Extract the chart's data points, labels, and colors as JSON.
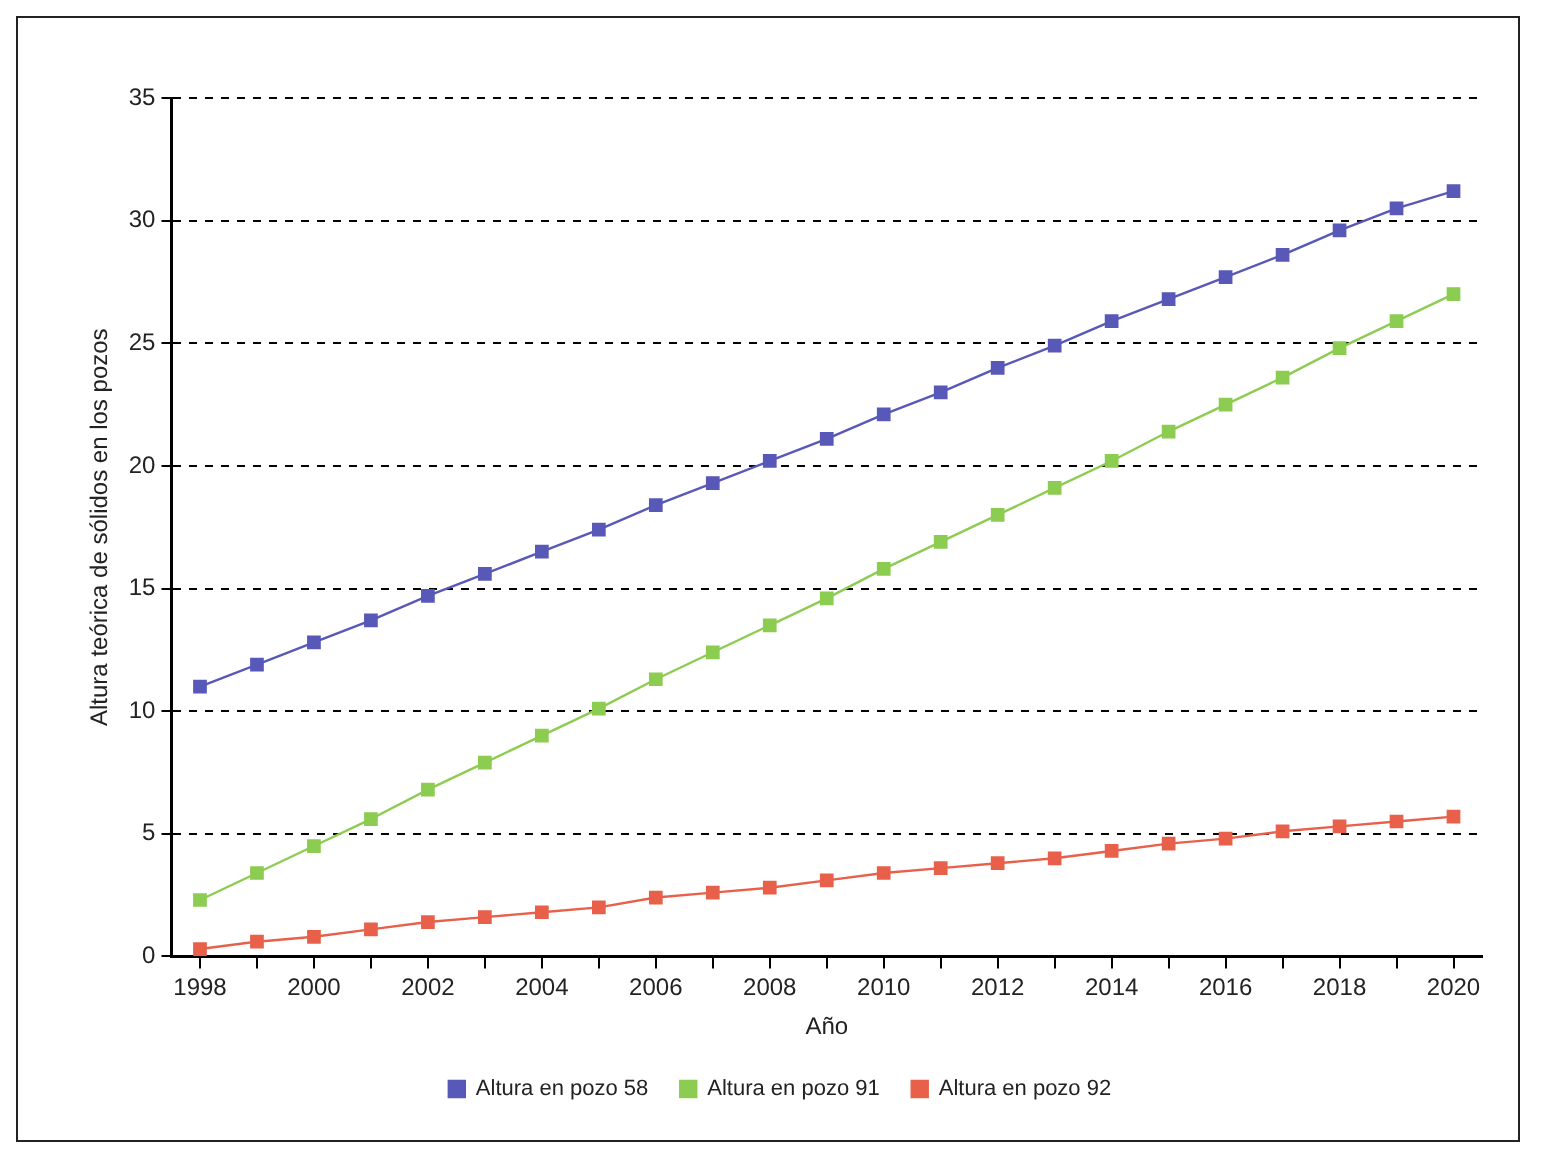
{
  "chart_data": {
    "type": "line",
    "xlabel": "Año",
    "ylabel": "Altura teórica de sólidos en los pozos",
    "x": [
      1998,
      1999,
      2000,
      2001,
      2002,
      2003,
      2004,
      2005,
      2006,
      2007,
      2008,
      2009,
      2010,
      2011,
      2012,
      2013,
      2014,
      2015,
      2016,
      2017,
      2018,
      2019,
      2020
    ],
    "series": [
      {
        "name": "Altura en pozo 58",
        "color": "#5858b8",
        "values": [
          11.0,
          11.9,
          12.8,
          13.7,
          14.7,
          15.6,
          16.5,
          17.4,
          18.4,
          19.3,
          20.2,
          21.1,
          22.1,
          23.0,
          24.0,
          24.9,
          25.9,
          26.8,
          27.7,
          28.6,
          29.6,
          30.5,
          31.2
        ]
      },
      {
        "name": "Altura en pozo 91",
        "color": "#8ccc50",
        "values": [
          2.3,
          3.4,
          4.5,
          5.6,
          6.8,
          7.9,
          9.0,
          10.1,
          11.3,
          12.4,
          13.5,
          14.6,
          15.8,
          16.9,
          18.0,
          19.1,
          20.2,
          21.4,
          22.5,
          23.6,
          24.8,
          25.9,
          27.0
        ]
      },
      {
        "name": "Altura en pozo 92",
        "color": "#e8604a",
        "values": [
          0.3,
          0.6,
          0.8,
          1.1,
          1.4,
          1.6,
          1.8,
          2.0,
          2.4,
          2.6,
          2.8,
          3.1,
          3.4,
          3.6,
          3.8,
          4.0,
          4.3,
          4.6,
          4.8,
          5.1,
          5.3,
          5.5,
          5.7
        ]
      }
    ],
    "xlim": [
      1997.5,
      2020.5
    ],
    "xticks": [
      1998,
      {
        "value": 1999,
        "label": null
      },
      2000,
      {
        "value": 2001,
        "label": null
      },
      2002,
      {
        "value": 2003,
        "label": null
      },
      2004,
      {
        "value": 2005,
        "label": null
      },
      2006,
      {
        "value": 2007,
        "label": null
      },
      2008,
      {
        "value": 2009,
        "label": null
      },
      2010,
      {
        "value": 2011,
        "label": null
      },
      2012,
      {
        "value": 2013,
        "label": null
      },
      2014,
      {
        "value": 2015,
        "label": null
      },
      2016,
      {
        "value": 2017,
        "label": null
      },
      2018,
      {
        "value": 2019,
        "label": null
      },
      2020
    ],
    "ylim": [
      0,
      35
    ],
    "yticks": [
      0,
      5,
      10,
      15,
      20,
      25,
      30,
      35
    ],
    "grid": "y",
    "legend": "bottom",
    "marker": "square",
    "line_style": "solid"
  }
}
